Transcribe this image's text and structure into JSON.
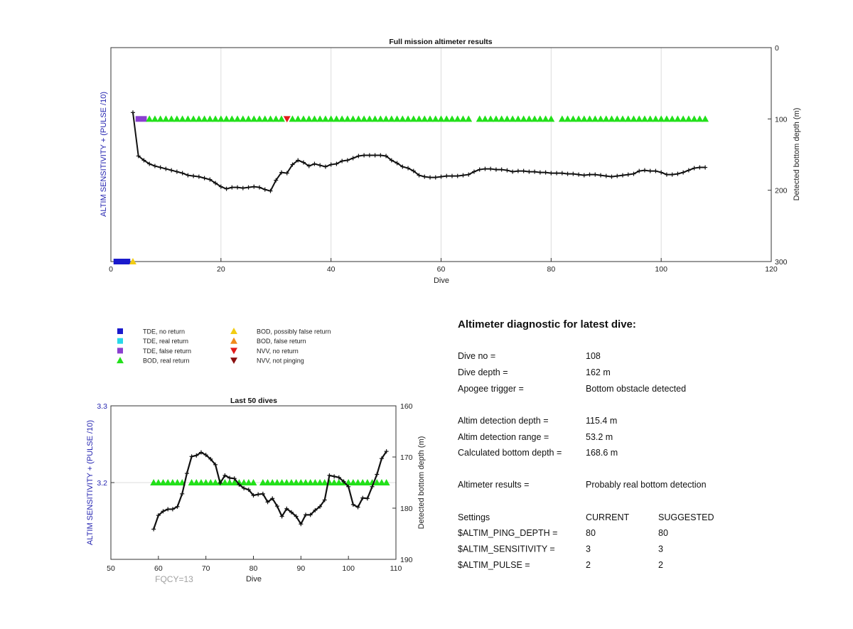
{
  "chart_data": [
    {
      "type": "line",
      "title": "Full mission altimeter results",
      "xlabel": "Dive",
      "ylabel_left": "ALTIM SENSITIVITY + (PULSE /10)",
      "ylabel_right": "Detected bottom depth (m)",
      "xlim": [
        0,
        120
      ],
      "xticks": [
        0,
        20,
        40,
        60,
        80,
        100,
        120
      ],
      "yright_lim": [
        0,
        300
      ],
      "yright_reversed": true,
      "yright_ticks": [
        0,
        100,
        200,
        300
      ],
      "grid": "vertical",
      "bottom_depth_series": {
        "name": "",
        "x": [
          4,
          5,
          6,
          7,
          8,
          9,
          10,
          11,
          12,
          13,
          14,
          15,
          16,
          17,
          18,
          19,
          20,
          21,
          22,
          23,
          24,
          25,
          26,
          27,
          28,
          29,
          30,
          31,
          32,
          33,
          34,
          35,
          36,
          37,
          38,
          39,
          40,
          41,
          42,
          43,
          44,
          45,
          46,
          47,
          48,
          49,
          50,
          51,
          52,
          53,
          54,
          55,
          56,
          57,
          58,
          59,
          60,
          61,
          62,
          63,
          64,
          65,
          66,
          67,
          68,
          69,
          70,
          71,
          72,
          73,
          74,
          75,
          76,
          77,
          78,
          79,
          80,
          81,
          82,
          83,
          84,
          85,
          86,
          87,
          88,
          89,
          90,
          91,
          92,
          93,
          94,
          95,
          96,
          97,
          98,
          99,
          100,
          101,
          102,
          103,
          104,
          105,
          106,
          107,
          108
        ],
        "y": [
          91,
          152,
          158,
          163,
          166,
          168,
          170,
          172,
          174,
          176,
          179,
          180,
          181,
          183,
          185,
          190,
          195,
          198,
          196,
          196,
          197,
          196,
          195,
          196,
          199,
          201,
          186,
          175,
          176,
          164,
          158,
          161,
          166,
          163,
          165,
          167,
          164,
          163,
          159,
          158,
          155,
          152,
          151,
          151,
          151,
          151,
          152,
          158,
          162,
          167,
          169,
          173,
          179,
          181,
          182,
          182,
          181,
          180,
          180,
          180,
          179,
          178,
          174,
          171,
          170,
          170,
          171,
          171,
          172,
          174,
          173,
          173,
          174,
          174,
          175,
          175,
          176,
          176,
          176,
          177,
          177,
          178,
          179,
          178,
          178,
          179,
          180,
          181,
          180,
          179,
          178,
          177,
          173,
          172,
          173,
          173,
          175,
          178,
          178,
          177,
          175,
          172,
          169,
          168,
          168
        ]
      },
      "markers": [
        {
          "dives": [
            1,
            2,
            3
          ],
          "type": "TDE, no return",
          "value": 300
        },
        {
          "dives": [
            4
          ],
          "type": "BOD, possibly false return",
          "value": 300
        },
        {
          "dives": [
            5,
            6
          ],
          "type": "TDE, false return",
          "value": 100
        },
        {
          "dives": [
            7,
            8,
            9,
            10,
            11,
            12,
            13,
            14,
            15,
            16,
            17,
            18,
            19,
            20,
            21,
            22,
            23,
            24,
            25,
            26,
            27,
            28,
            29,
            30,
            31,
            33,
            34,
            35,
            36,
            37,
            38,
            39,
            40,
            41,
            42,
            43,
            44,
            45,
            46,
            47,
            48,
            49,
            50,
            51,
            52,
            53,
            54,
            55,
            56,
            57,
            58,
            59,
            60,
            61,
            62,
            63,
            64,
            65,
            67,
            68,
            69,
            70,
            71,
            72,
            73,
            74,
            75,
            76,
            77,
            78,
            79,
            80,
            82,
            83,
            84,
            85,
            86,
            87,
            88,
            89,
            90,
            91,
            92,
            93,
            94,
            95,
            96,
            97,
            98,
            99,
            100,
            101,
            102,
            103,
            104,
            105,
            106,
            107,
            108
          ],
          "type": "BOD, real return",
          "value": 100
        },
        {
          "dives": [
            32
          ],
          "type": "NVV, no return",
          "value": 100
        }
      ]
    },
    {
      "type": "line",
      "title": "Last 50 dives",
      "xlabel": "Dive",
      "ylabel_left": "ALTIM SENSITIVITY + (PULSE /10)",
      "ylabel_right": "Detected bottom depth (m)",
      "xlim": [
        50,
        110
      ],
      "xticks": [
        50,
        60,
        70,
        80,
        90,
        100,
        110
      ],
      "yleft_lim": [
        3.1,
        3.3
      ],
      "yleft_ticks": [
        3.2,
        3.3
      ],
      "yleft_tick_labels": [
        "3.2",
        "3.3"
      ],
      "yright_lim": [
        160,
        190
      ],
      "yright_reversed": true,
      "yright_ticks": [
        160,
        170,
        180,
        190
      ],
      "grid": "horizontal",
      "bottom_depth_series": {
        "name": "",
        "x": [
          59,
          60,
          61,
          62,
          63,
          64,
          65,
          66,
          67,
          68,
          69,
          70,
          71,
          72,
          73,
          74,
          75,
          76,
          77,
          78,
          79,
          80,
          81,
          82,
          83,
          84,
          85,
          86,
          87,
          88,
          89,
          90,
          91,
          92,
          93,
          94,
          95,
          96,
          97,
          98,
          99,
          100,
          101,
          102,
          103,
          104,
          105,
          106,
          107,
          108
        ],
        "y": [
          184.1,
          181.4,
          180.6,
          180.2,
          180.2,
          179.7,
          177.2,
          173.2,
          169.9,
          169.7,
          169.1,
          169.6,
          170.4,
          171.5,
          175.1,
          173.6,
          174.1,
          174.2,
          175.4,
          176.1,
          176.4,
          177.5,
          177.3,
          177.2,
          178.8,
          178.1,
          179.6,
          181.6,
          180.1,
          180.8,
          181.6,
          183.1,
          181.3,
          181.3,
          180.4,
          179.7,
          178.4,
          173.6,
          173.8,
          174.0,
          174.8,
          175.8,
          179.3,
          179.8,
          178.0,
          178.1,
          175.8,
          173.4,
          170.3,
          168.9
        ]
      },
      "real_return_dives": [
        59,
        60,
        61,
        62,
        63,
        64,
        65,
        67,
        68,
        69,
        70,
        71,
        72,
        73,
        74,
        75,
        76,
        77,
        78,
        79,
        80,
        82,
        83,
        84,
        85,
        86,
        87,
        88,
        89,
        90,
        91,
        92,
        93,
        94,
        95,
        96,
        97,
        98,
        99,
        100,
        101,
        102,
        103,
        104,
        105,
        106,
        107,
        108
      ],
      "real_return_value": 3.2,
      "annotation": "FQCY=13"
    }
  ],
  "legend": [
    {
      "label": "TDE, no return",
      "shape": "square",
      "color": "#1a1acc"
    },
    {
      "label": "TDE, real return",
      "shape": "square",
      "color": "#27d8e8"
    },
    {
      "label": "TDE, false return",
      "shape": "square",
      "color": "#8a3fd0"
    },
    {
      "label": "BOD, real return",
      "shape": "triangle-up",
      "color": "#22e01a"
    },
    {
      "label": "BOD, possibly false return",
      "shape": "triangle-up",
      "color": "#f2cc12"
    },
    {
      "label": "BOD, false return",
      "shape": "triangle-up",
      "color": "#f08a1a"
    },
    {
      "label": "NVV, no return",
      "shape": "triangle-down",
      "color": "#e21a1a"
    },
    {
      "label": "NVV, not pinging",
      "shape": "triangle-down",
      "color": "#8a1010"
    }
  ],
  "colors": {
    "depth_line": "#111111",
    "left_axis_label": "#2424b0",
    "grid": "#dcdcdc",
    "annotation": "#a0a0a0"
  },
  "diagnostic": {
    "title": "Altimeter diagnostic for latest dive:",
    "rows": [
      {
        "label": "Dive no =",
        "value": "108"
      },
      {
        "label": "Dive depth =",
        "value": "162 m"
      },
      {
        "label": "Apogee trigger =",
        "value": "Bottom obstacle detected"
      },
      {
        "label": "Altim detection depth =",
        "value": "115.4 m"
      },
      {
        "label": "Altim detection range =",
        "value": "53.2 m"
      },
      {
        "label": "Calculated bottom depth =",
        "value": "168.6 m"
      },
      {
        "label": "Altimeter results =",
        "value": "Probably real bottom detection"
      }
    ],
    "settings_header": {
      "label": "Settings",
      "current": "CURRENT",
      "suggested": "SUGGESTED"
    },
    "settings": [
      {
        "name": "$ALTIM_PING_DEPTH =",
        "current": "80",
        "suggested": "80"
      },
      {
        "name": "$ALTIM_SENSITIVITY =",
        "current": "3",
        "suggested": "3"
      },
      {
        "name": "$ALTIM_PULSE =",
        "current": "2",
        "suggested": "2"
      }
    ]
  }
}
